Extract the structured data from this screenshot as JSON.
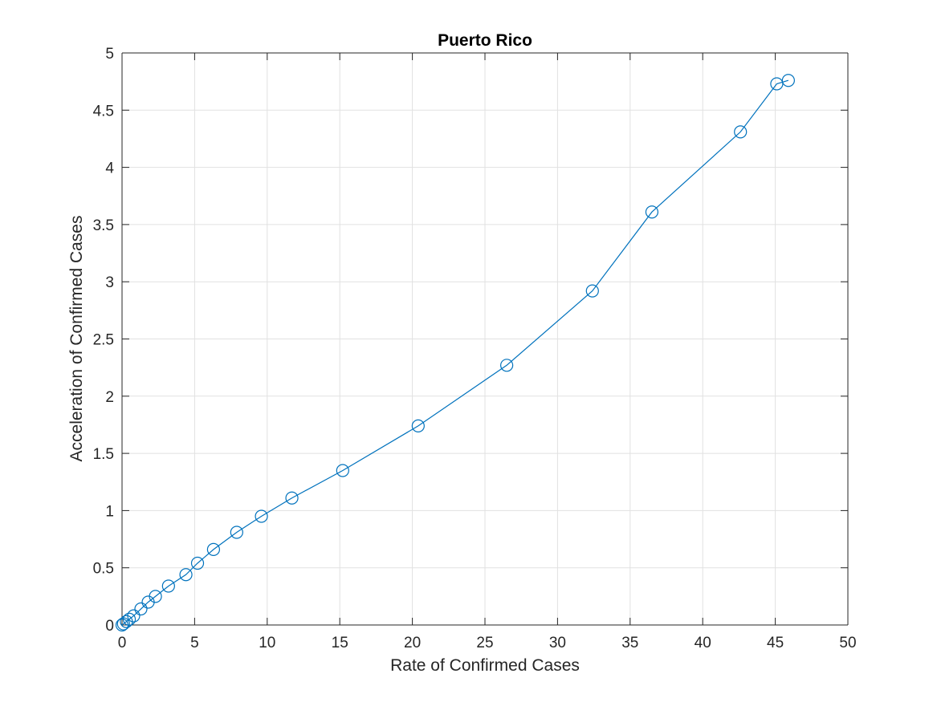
{
  "chart_data": {
    "type": "line",
    "title": "Puerto Rico",
    "xlabel": "Rate of Confirmed Cases",
    "ylabel": "Acceleration of Confirmed Cases",
    "xlim": [
      0,
      50
    ],
    "ylim": [
      0,
      5
    ],
    "grid": true,
    "marker": "circle",
    "colors": {
      "series": "#0072BD",
      "grid": "#e1e1e1",
      "axis": "#262626"
    },
    "x_ticks": [
      "0",
      "5",
      "10",
      "15",
      "20",
      "25",
      "30",
      "35",
      "40",
      "45",
      "50"
    ],
    "y_ticks": [
      "0",
      "0.5",
      "1",
      "1.5",
      "2",
      "2.5",
      "3",
      "3.5",
      "4",
      "4.5",
      "5"
    ],
    "series": [
      {
        "x": [
          0.0,
          0.1,
          0.3,
          0.5,
          0.8,
          1.3,
          1.8,
          2.3,
          3.2,
          4.4,
          5.2,
          6.3,
          7.9,
          9.6,
          11.7,
          15.2,
          20.4,
          26.5,
          32.4,
          36.5,
          42.6,
          45.1,
          45.9
        ],
        "y": [
          0.0,
          0.01,
          0.03,
          0.05,
          0.08,
          0.14,
          0.2,
          0.25,
          0.34,
          0.44,
          0.54,
          0.66,
          0.81,
          0.95,
          1.11,
          1.35,
          1.74,
          2.27,
          2.92,
          3.61,
          4.31,
          4.73,
          4.76
        ]
      }
    ]
  }
}
